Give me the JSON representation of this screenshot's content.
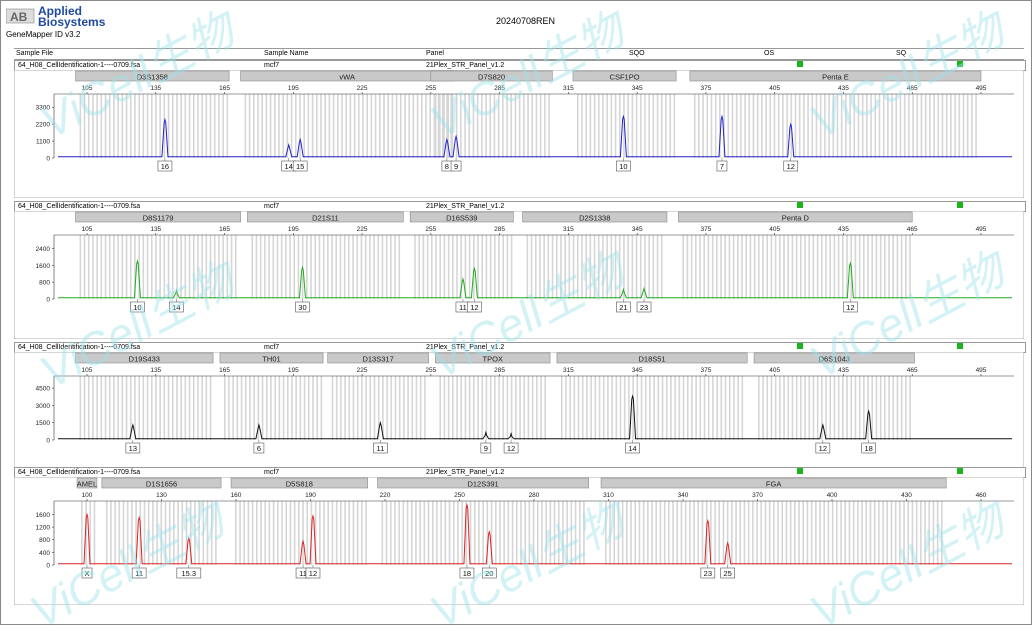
{
  "header": {
    "logo_mark": "AB",
    "logo_line1": "Applied",
    "logo_line2": "Biosystems",
    "software": "GeneMapper ID v3.2",
    "run_title": "20240708REN"
  },
  "columns": [
    "Sample File",
    "Sample Name",
    "Panel",
    "SQO",
    "OS",
    "SQ"
  ],
  "watermark": "ViCell生物",
  "chart_data": [
    {
      "type": "line",
      "sample_file": "64_H08_CellIdentification-1----0709.fsa",
      "sample_name": "mcf7",
      "panel": "21Plex_STR_Panel_v1.2",
      "color": "#2222cc",
      "x_ticks": [
        105,
        135,
        165,
        195,
        225,
        255,
        285,
        315,
        345,
        375,
        405,
        435,
        465,
        495
      ],
      "y_ticks": [
        0,
        1100,
        2200,
        3300
      ],
      "ylim": [
        0,
        3900
      ],
      "markers": [
        {
          "name": "D3S1358",
          "x0": 100,
          "x1": 167
        },
        {
          "name": "vWA",
          "x0": 172,
          "x1": 265
        },
        {
          "name": "D7S820",
          "x0": 255,
          "x1": 308
        },
        {
          "name": "CSF1PO",
          "x0": 317,
          "x1": 362
        },
        {
          "name": "Penta E",
          "x0": 368,
          "x1": 495
        }
      ],
      "peaks": [
        {
          "x": 139,
          "height": 2500,
          "labels": [
            "16"
          ]
        },
        {
          "x": 193,
          "height": 850,
          "labels": [
            "14"
          ]
        },
        {
          "x": 198,
          "height": 1200,
          "labels": [
            "15"
          ]
        },
        {
          "x": 262,
          "height": 1200,
          "labels": [
            "8"
          ]
        },
        {
          "x": 266,
          "height": 1400,
          "labels": [
            "9"
          ]
        },
        {
          "x": 339,
          "height": 2700,
          "labels": [
            "10"
          ]
        },
        {
          "x": 382,
          "height": 2700,
          "labels": [
            "7"
          ]
        },
        {
          "x": 412,
          "height": 2200,
          "labels": [
            "12"
          ]
        }
      ]
    },
    {
      "type": "line",
      "sample_file": "64_H08_CellIdentification-1----0709.fsa",
      "sample_name": "mcf7",
      "panel": "21Plex_STR_Panel_v1.2",
      "color": "#22aa22",
      "x_ticks": [
        105,
        135,
        165,
        195,
        225,
        255,
        285,
        315,
        345,
        375,
        405,
        435,
        465,
        495
      ],
      "y_ticks": [
        0,
        800,
        1600,
        2400
      ],
      "ylim": [
        0,
        2850
      ],
      "markers": [
        {
          "name": "D8S1179",
          "x0": 100,
          "x1": 172
        },
        {
          "name": "D21S11",
          "x0": 175,
          "x1": 243
        },
        {
          "name": "D16S539",
          "x0": 246,
          "x1": 291
        },
        {
          "name": "D2S1338",
          "x0": 295,
          "x1": 358
        },
        {
          "name": "Penta D",
          "x0": 363,
          "x1": 465
        }
      ],
      "peaks": [
        {
          "x": 127,
          "height": 1800,
          "labels": [
            "10"
          ]
        },
        {
          "x": 144,
          "height": 400,
          "labels": [
            "14"
          ]
        },
        {
          "x": 199,
          "height": 1500,
          "labels": [
            "30"
          ]
        },
        {
          "x": 269,
          "height": 950,
          "labels": [
            "11"
          ]
        },
        {
          "x": 274,
          "height": 1450,
          "labels": [
            "12"
          ]
        },
        {
          "x": 339,
          "height": 450,
          "labels": [
            "21"
          ]
        },
        {
          "x": 348,
          "height": 500,
          "labels": [
            "23"
          ]
        },
        {
          "x": 438,
          "height": 1700,
          "labels": [
            "12"
          ]
        }
      ]
    },
    {
      "type": "line",
      "sample_file": "64_H08_CellIdentification-1----0709.fsa",
      "sample_name": "mcf7",
      "panel": "21Plex_STR_Panel_v1.2",
      "color": "#111111",
      "x_ticks": [
        105,
        135,
        165,
        195,
        225,
        255,
        285,
        315,
        345,
        375,
        405,
        435,
        465,
        495
      ],
      "y_ticks": [
        0,
        1500,
        3000,
        4500
      ],
      "ylim": [
        0,
        5200
      ],
      "markers": [
        {
          "name": "D19S433",
          "x0": 100,
          "x1": 160
        },
        {
          "name": "TH01",
          "x0": 163,
          "x1": 208
        },
        {
          "name": "D13S317",
          "x0": 210,
          "x1": 254
        },
        {
          "name": "TPOX",
          "x0": 257,
          "x1": 307
        },
        {
          "name": "D18S51",
          "x0": 310,
          "x1": 393
        },
        {
          "name": "D6S1043",
          "x0": 396,
          "x1": 466
        }
      ],
      "peaks": [
        {
          "x": 125,
          "height": 1300,
          "labels": [
            "13"
          ]
        },
        {
          "x": 180,
          "height": 1300,
          "labels": [
            "6"
          ]
        },
        {
          "x": 233,
          "height": 1500,
          "labels": [
            "11"
          ]
        },
        {
          "x": 279,
          "height": 650,
          "labels": [
            "9"
          ]
        },
        {
          "x": 290,
          "height": 550,
          "labels": [
            "12"
          ]
        },
        {
          "x": 343,
          "height": 3800,
          "labels": [
            "14"
          ]
        },
        {
          "x": 426,
          "height": 1300,
          "labels": [
            "12"
          ]
        },
        {
          "x": 446,
          "height": 2500,
          "labels": [
            "18"
          ]
        }
      ]
    },
    {
      "type": "line",
      "sample_file": "64_H08_CellIdentification-1----0709.fsa",
      "sample_name": "mcf7",
      "panel": "21Plex_STR_Panel_v1.2",
      "color": "#dd2222",
      "x_ticks": [
        100,
        130,
        160,
        190,
        220,
        250,
        280,
        310,
        340,
        370,
        400,
        430,
        460
      ],
      "y_ticks": [
        0,
        400,
        800,
        1200,
        1600
      ],
      "ylim": [
        0,
        1900
      ],
      "markers": [
        {
          "name": "AMEL",
          "x0": 96,
          "x1": 104
        },
        {
          "name": "D1S1656",
          "x0": 106,
          "x1": 154
        },
        {
          "name": "D5S818",
          "x0": 158,
          "x1": 213
        },
        {
          "name": "D12S391",
          "x0": 217,
          "x1": 302
        },
        {
          "name": "FGA",
          "x0": 307,
          "x1": 446
        }
      ],
      "peaks": [
        {
          "x": 100,
          "height": 1600,
          "labels": [
            "X"
          ]
        },
        {
          "x": 121,
          "height": 1500,
          "labels": [
            "11"
          ]
        },
        {
          "x": 141,
          "height": 850,
          "labels": [
            "15.3"
          ]
        },
        {
          "x": 187,
          "height": 750,
          "labels": [
            "11"
          ]
        },
        {
          "x": 191,
          "height": 1550,
          "labels": [
            "12"
          ]
        },
        {
          "x": 253,
          "height": 1900,
          "labels": [
            "18"
          ]
        },
        {
          "x": 262,
          "height": 1050,
          "labels": [
            "20"
          ]
        },
        {
          "x": 350,
          "height": 1400,
          "labels": [
            "23"
          ]
        },
        {
          "x": 358,
          "height": 700,
          "labels": [
            "25"
          ]
        }
      ]
    }
  ]
}
